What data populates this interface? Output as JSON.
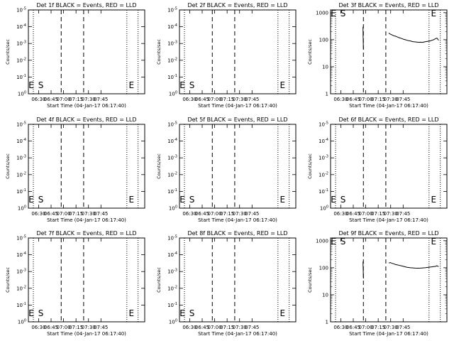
{
  "chart_data": [
    {
      "type": "line",
      "title": "Det 1f BLACK = Events, RED = LLD",
      "ylabel": "Counts/sec",
      "xlabel": "Start Time (04-Jan-17 06:17:40)",
      "xticks": [
        "06:30",
        "06:45",
        "07:00",
        "07:15",
        "07:30",
        "07:45"
      ],
      "yscale": "log",
      "yticks": [
        "10^0",
        "10^-1",
        "10^-2",
        "10^-3",
        "10^-4",
        "10^-5"
      ],
      "flags": [
        {
          "text": "E",
          "at": "left"
        },
        {
          "text": "S",
          "at": "start"
        },
        {
          "text": "E",
          "at": "end"
        }
      ],
      "series": []
    },
    {
      "type": "line",
      "title": "Det 2f BLACK = Events, RED = LLD",
      "ylabel": "Counts/sec",
      "xlabel": "Start Time (04-Jan-17 06:17:40)",
      "xticks": [
        "06:30",
        "06:45",
        "07:00",
        "07:15",
        "07:30",
        "07:45"
      ],
      "yscale": "log",
      "yticks": [
        "10^0",
        "10^-1",
        "10^-2",
        "10^-3",
        "10^-4",
        "10^-5"
      ],
      "flags": [
        {
          "text": "E",
          "at": "left"
        },
        {
          "text": "S",
          "at": "start"
        },
        {
          "text": "E",
          "at": "end"
        }
      ],
      "series": []
    },
    {
      "type": "line",
      "title": "Det 3f BLACK = Events, RED = LLD",
      "ylabel": "Counts/sec",
      "xlabel": "Start Time (04-Jan-17 06:17:40)",
      "xticks": [
        "06:30",
        "06:45",
        "07:00",
        "07:15",
        "07:30",
        "07:45"
      ],
      "yscale": "log",
      "yticks": [
        "1",
        "10",
        "100",
        "1000"
      ],
      "flags": [
        {
          "text": "E",
          "at": "left"
        },
        {
          "text": "S",
          "at": "start"
        },
        {
          "text": "E",
          "at": "end"
        }
      ],
      "series": [
        {
          "x": [
            39,
            39.2,
            39.4,
            39.6
          ],
          "y": [
            300,
            130,
            60,
            45
          ]
        },
        {
          "x": [
            70,
            72,
            74,
            76,
            78,
            80,
            82,
            84,
            86,
            88,
            90,
            92,
            94,
            96,
            98,
            100,
            102,
            104,
            106,
            108,
            110,
            112,
            114,
            116,
            118,
            120,
            122,
            124,
            126,
            128,
            130
          ],
          "y": [
            175,
            160,
            150,
            140,
            135,
            128,
            120,
            115,
            110,
            103,
            100,
            95,
            92,
            90,
            86,
            84,
            83,
            82,
            80,
            81,
            80,
            82,
            84,
            86,
            88,
            90,
            95,
            100,
            108,
            115,
            95
          ]
        }
      ]
    },
    {
      "type": "line",
      "title": "Det 4f BLACK = Events, RED = LLD",
      "ylabel": "Counts/sec",
      "xlabel": "Start Time (04-Jan-17 06:17:40)",
      "xticks": [
        "06:30",
        "06:45",
        "07:00",
        "07:15",
        "07:30",
        "07:45"
      ],
      "yscale": "log",
      "yticks": [
        "10^0",
        "10^-1",
        "10^-2",
        "10^-3",
        "10^-4",
        "10^-5"
      ],
      "flags": [
        {
          "text": "E",
          "at": "left"
        },
        {
          "text": "S",
          "at": "start"
        },
        {
          "text": "E",
          "at": "end"
        }
      ],
      "series": []
    },
    {
      "type": "line",
      "title": "Det 5f BLACK = Events, RED = LLD",
      "ylabel": "Counts/sec",
      "xlabel": "Start Time (04-Jan-17 06:17:40)",
      "xticks": [
        "06:30",
        "06:45",
        "07:00",
        "07:15",
        "07:30",
        "07:45"
      ],
      "yscale": "log",
      "yticks": [
        "10^0",
        "10^-1",
        "10^-2",
        "10^-3",
        "10^-4",
        "10^-5"
      ],
      "flags": [
        {
          "text": "E",
          "at": "left"
        },
        {
          "text": "S",
          "at": "start"
        },
        {
          "text": "E",
          "at": "end"
        }
      ],
      "series": []
    },
    {
      "type": "line",
      "title": "Det 6f BLACK = Events, RED = LLD",
      "ylabel": "Counts/sec",
      "xlabel": "Start Time (04-Jan-17 06:17:40)",
      "xticks": [
        "06:30",
        "06:45",
        "07:00",
        "07:15",
        "07:30",
        "07:45"
      ],
      "yscale": "log",
      "yticks": [
        "10^0",
        "10^-1",
        "10^-2",
        "10^-3",
        "10^-4",
        "10^-5"
      ],
      "flags": [
        {
          "text": "E",
          "at": "left"
        },
        {
          "text": "S",
          "at": "start"
        },
        {
          "text": "E",
          "at": "end"
        }
      ],
      "series": []
    },
    {
      "type": "line",
      "title": "Det 7f BLACK = Events, RED = LLD",
      "ylabel": "Counts/sec",
      "xlabel": "Start Time (04-Jan-17 06:17:40)",
      "xticks": [
        "06:30",
        "06:45",
        "07:00",
        "07:15",
        "07:30",
        "07:45"
      ],
      "yscale": "log",
      "yticks": [
        "10^0",
        "10^-1",
        "10^-2",
        "10^-3",
        "10^-4",
        "10^-5"
      ],
      "flags": [
        {
          "text": "E",
          "at": "left"
        },
        {
          "text": "S",
          "at": "start"
        },
        {
          "text": "E",
          "at": "end"
        }
      ],
      "series": []
    },
    {
      "type": "line",
      "title": "Det 8f BLACK = Events, RED = LLD",
      "ylabel": "Counts/sec",
      "xlabel": "Start Time (04-Jan-17 06:17:40)",
      "xticks": [
        "06:30",
        "06:45",
        "07:00",
        "07:15",
        "07:30",
        "07:45"
      ],
      "yscale": "log",
      "yticks": [
        "10^0",
        "10^-1",
        "10^-2",
        "10^-3",
        "10^-4",
        "10^-5"
      ],
      "flags": [
        {
          "text": "E",
          "at": "left"
        },
        {
          "text": "S",
          "at": "start"
        },
        {
          "text": "E",
          "at": "end"
        }
      ],
      "series": []
    },
    {
      "type": "line",
      "title": "Det 9f BLACK = Events, RED = LLD",
      "ylabel": "Counts/sec",
      "xlabel": "Start Time (04-Jan-17 06:17:40)",
      "xticks": [
        "06:30",
        "06:45",
        "07:00",
        "07:15",
        "07:30",
        "07:45"
      ],
      "yscale": "log",
      "yticks": [
        "1",
        "10",
        "100",
        "1000"
      ],
      "flags": [
        {
          "text": "E",
          "at": "left"
        },
        {
          "text": "S",
          "at": "start"
        },
        {
          "text": "E",
          "at": "end"
        }
      ],
      "series": [
        {
          "x": [
            39,
            39.2,
            39.4,
            39.6
          ],
          "y": [
            170,
            110,
            55,
            40
          ]
        },
        {
          "x": [
            70,
            72,
            74,
            76,
            78,
            80,
            82,
            84,
            86,
            88,
            90,
            92,
            94,
            96,
            98,
            100,
            102,
            104,
            106,
            108,
            110,
            112,
            114,
            116,
            118,
            120,
            122,
            124,
            126,
            128,
            130
          ],
          "y": [
            150,
            155,
            145,
            140,
            132,
            128,
            124,
            120,
            116,
            112,
            108,
            104,
            102,
            100,
            99,
            98,
            97,
            96,
            96,
            97,
            98,
            99,
            100,
            102,
            104,
            106,
            108,
            110,
            112,
            118,
            110
          ]
        }
      ]
    }
  ]
}
